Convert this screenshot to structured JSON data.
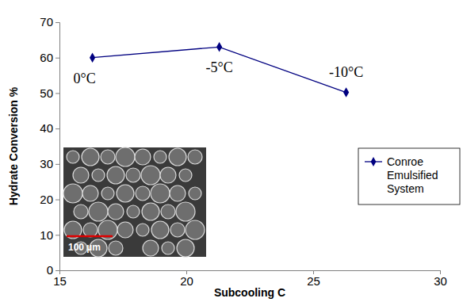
{
  "chart_data": {
    "type": "line",
    "x_label": "Subcooling C",
    "y_label": "Hydrate Conversion %",
    "x": [
      16.3,
      21.3,
      26.3
    ],
    "series": [
      {
        "name": "Conroe Emulsified System",
        "color": "#000080",
        "marker": "diamond",
        "line_style": "solid",
        "values": [
          60,
          63,
          50.2
        ]
      }
    ],
    "xlim": [
      15,
      30
    ],
    "xticks": [
      15,
      20,
      25,
      30
    ],
    "ylim": [
      0,
      70
    ],
    "yticks": [
      0,
      10,
      20,
      30,
      40,
      50,
      60,
      70
    ],
    "grid": false,
    "legend": "right",
    "annotations": [
      "0°C",
      "-5°C",
      "-10°C",
      "100 µm"
    ]
  }
}
